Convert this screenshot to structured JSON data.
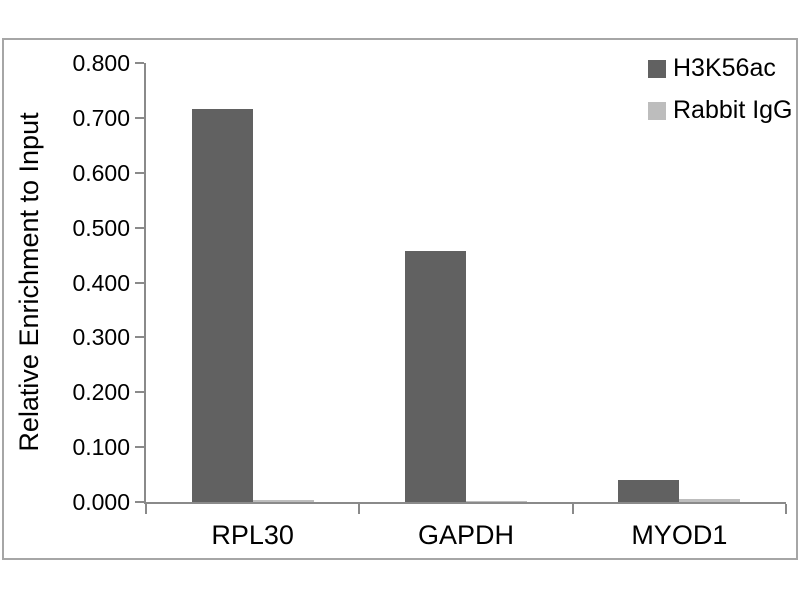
{
  "chart_data": {
    "type": "bar",
    "title": "",
    "categories": [
      "RPL30",
      "GAPDH",
      "MYOD1"
    ],
    "series": [
      {
        "name": "H3K56ac",
        "color": "#616161",
        "values": [
          0.717,
          0.457,
          0.04
        ]
      },
      {
        "name": "Rabbit IgG",
        "color": "#bdbdbd",
        "values": [
          0.004,
          0.001,
          0.006
        ]
      }
    ],
    "xlabel": "",
    "ylabel": "Relative Enrichment to Input",
    "ylim": [
      0,
      0.8
    ],
    "ytick_labels": [
      "0.000",
      "0.100",
      "0.200",
      "0.300",
      "0.400",
      "0.500",
      "0.600",
      "0.700",
      "0.800"
    ],
    "grid": false,
    "legend_position": "top-right"
  },
  "colors": {
    "axis": "#8a8a8a",
    "frame_border": "#a6a6a6",
    "text": "#000000",
    "background": "#ffffff",
    "series_dark": "#616161",
    "series_light": "#bdbdbd"
  }
}
